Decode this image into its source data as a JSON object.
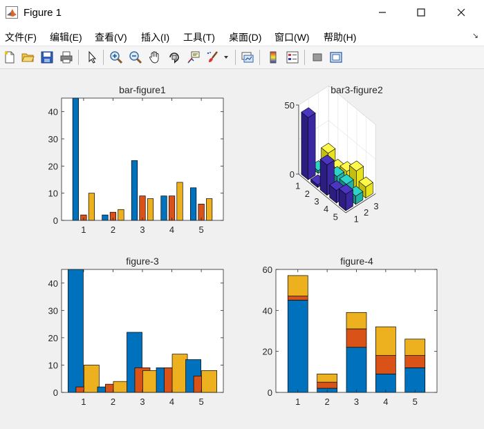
{
  "window": {
    "title": "Figure 1"
  },
  "menu": [
    "文件(F)",
    "编辑(E)",
    "查看(V)",
    "插入(I)",
    "工具(T)",
    "桌面(D)",
    "窗口(W)",
    "帮助(H)"
  ],
  "toolbar": {
    "icons": [
      "new-figure-icon",
      "open-file-icon",
      "save-icon",
      "print-icon",
      "pointer-icon",
      "zoom-in-icon",
      "zoom-out-icon",
      "pan-hand-icon",
      "rotate-3d-icon",
      "data-cursor-icon",
      "brush-icon",
      "brush-dropdown-icon",
      "link-plot-icon",
      "insert-colorbar-icon",
      "insert-legend-icon",
      "hide-plot-tools-icon",
      "show-plot-tools-icon"
    ]
  },
  "colors": {
    "s1": "#0072BD",
    "s2": "#D95319",
    "s3": "#EDB120",
    "b3_dark": "#3D26A8",
    "b3_teal": "#1FC0B5",
    "b3_yellow": "#F9F218"
  },
  "chart_data": [
    {
      "type": "bar",
      "variant": "grouped",
      "title": "bar-figure1",
      "categories": [
        "1",
        "2",
        "3",
        "4",
        "5"
      ],
      "series": [
        {
          "values": [
            45,
            2,
            22,
            9,
            12
          ]
        },
        {
          "values": [
            2,
            3,
            9,
            9,
            6
          ]
        },
        {
          "values": [
            10,
            4,
            8,
            14,
            8
          ]
        }
      ],
      "ylim": [
        0,
        45
      ],
      "yticks": [
        "0",
        "10",
        "20",
        "30",
        "40"
      ]
    },
    {
      "type": "bar",
      "variant": "bar3",
      "title": "bar3-figure2",
      "rows": [
        "1",
        "2",
        "3",
        "4",
        "5"
      ],
      "columns": [
        "1",
        "2",
        "3"
      ],
      "values": [
        [
          45,
          2,
          10
        ],
        [
          2,
          3,
          4
        ],
        [
          22,
          9,
          8
        ],
        [
          9,
          9,
          14
        ],
        [
          12,
          6,
          8
        ]
      ],
      "zlim": [
        0,
        50
      ],
      "zticks": [
        "0",
        "50"
      ]
    },
    {
      "type": "bar",
      "variant": "grouped-overlapping",
      "title": "figure-3",
      "categories": [
        "1",
        "2",
        "3",
        "4",
        "5"
      ],
      "series": [
        {
          "values": [
            45,
            2,
            22,
            9,
            12
          ]
        },
        {
          "values": [
            2,
            3,
            9,
            9,
            6
          ]
        },
        {
          "values": [
            10,
            4,
            8,
            14,
            8
          ]
        }
      ],
      "ylim": [
        0,
        45
      ],
      "yticks": [
        "0",
        "10",
        "20",
        "30",
        "40"
      ]
    },
    {
      "type": "bar",
      "variant": "stacked",
      "title": "figure-4",
      "categories": [
        "1",
        "2",
        "3",
        "4",
        "5"
      ],
      "series": [
        {
          "values": [
            45,
            2,
            22,
            9,
            12
          ]
        },
        {
          "values": [
            2,
            3,
            9,
            9,
            6
          ]
        },
        {
          "values": [
            10,
            4,
            8,
            14,
            8
          ]
        }
      ],
      "ylim": [
        0,
        60
      ],
      "yticks": [
        "0",
        "20",
        "40",
        "60"
      ]
    }
  ]
}
